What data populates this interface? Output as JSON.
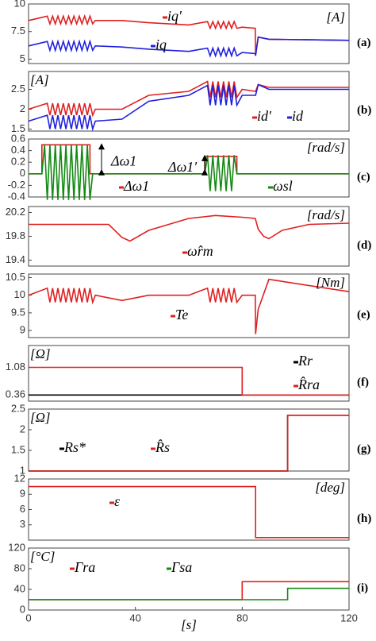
{
  "chart_data": [
    {
      "type": "line",
      "label": "(a)",
      "unit": "[A]",
      "xlim": [
        0,
        120
      ],
      "ylim": [
        4.6,
        10
      ],
      "yticks": [
        5,
        7.5,
        10
      ],
      "series": [
        {
          "name": "-iq′",
          "color": "#e02020",
          "x": [
            0,
            7,
            8,
            9,
            10,
            11,
            12,
            13,
            14,
            15,
            16,
            17,
            18,
            19,
            20,
            21,
            22,
            23,
            24,
            25,
            35,
            45,
            60,
            67,
            68,
            69,
            70,
            71,
            72,
            73,
            74,
            75,
            76,
            77,
            78,
            80,
            84.9,
            85,
            86,
            90,
            120
          ],
          "values": [
            8.5,
            8.9,
            8.2,
            8.9,
            8.2,
            8.9,
            8.2,
            8.9,
            8.2,
            8.9,
            8.2,
            8.9,
            8.2,
            8.9,
            8.2,
            8.9,
            8.2,
            8.9,
            8.2,
            8.5,
            8.5,
            8.3,
            8.1,
            8.4,
            7.8,
            8.4,
            7.8,
            8.4,
            7.8,
            8.4,
            7.8,
            8.4,
            7.8,
            8.4,
            7.8,
            7.9,
            7.8,
            5.4,
            7.0,
            6.8,
            6.7
          ]
        },
        {
          "name": "-iq",
          "color": "#2020e0",
          "x": [
            0,
            7,
            8,
            9,
            10,
            11,
            12,
            13,
            14,
            15,
            16,
            17,
            18,
            19,
            20,
            21,
            22,
            23,
            24,
            25,
            35,
            45,
            60,
            67,
            68,
            69,
            70,
            71,
            72,
            73,
            74,
            75,
            76,
            77,
            78,
            80,
            84.9,
            85,
            86,
            90,
            120
          ],
          "values": [
            6.2,
            6.6,
            5.8,
            6.6,
            5.8,
            6.6,
            5.8,
            6.6,
            5.8,
            6.6,
            5.8,
            6.6,
            5.8,
            6.6,
            5.8,
            6.6,
            5.8,
            6.6,
            5.8,
            6.2,
            6.1,
            5.9,
            5.7,
            6.0,
            5.3,
            6.0,
            5.3,
            6.0,
            5.3,
            6.0,
            5.3,
            6.0,
            5.3,
            6.0,
            5.3,
            5.6,
            5.5,
            5.3,
            7.0,
            6.8,
            6.7
          ]
        }
      ]
    },
    {
      "type": "line",
      "label": "(b)",
      "unit": "[A]",
      "xlim": [
        0,
        120
      ],
      "ylim": [
        1.45,
        2.95
      ],
      "yticks": [
        1.5,
        2,
        2.5
      ],
      "series": [
        {
          "name": "-id′",
          "color": "#e02020",
          "x": [
            0,
            7,
            8,
            9,
            10,
            11,
            12,
            13,
            14,
            15,
            16,
            17,
            18,
            19,
            20,
            21,
            22,
            23,
            24,
            25,
            35,
            45,
            60,
            67,
            68,
            69,
            70,
            71,
            72,
            73,
            74,
            75,
            76,
            77,
            78,
            80,
            84.9,
            85,
            86,
            90,
            120
          ],
          "values": [
            2.0,
            2.15,
            1.85,
            2.15,
            1.85,
            2.15,
            1.85,
            2.15,
            1.85,
            2.15,
            1.85,
            2.15,
            1.85,
            2.15,
            1.85,
            2.15,
            1.85,
            2.15,
            1.85,
            2.0,
            2.0,
            2.35,
            2.45,
            2.7,
            2.3,
            2.7,
            2.3,
            2.7,
            2.3,
            2.7,
            2.3,
            2.7,
            2.3,
            2.7,
            2.3,
            2.5,
            2.45,
            2.45,
            2.62,
            2.55,
            2.55
          ]
        },
        {
          "name": "-id",
          "color": "#2020e0",
          "x": [
            0,
            7,
            8,
            9,
            10,
            11,
            12,
            13,
            14,
            15,
            16,
            17,
            18,
            19,
            20,
            21,
            22,
            23,
            24,
            25,
            35,
            45,
            60,
            67,
            68,
            69,
            70,
            71,
            72,
            73,
            74,
            75,
            76,
            77,
            78,
            80,
            84.9,
            85,
            86,
            90,
            120
          ],
          "values": [
            1.7,
            1.85,
            1.5,
            1.85,
            1.5,
            1.85,
            1.5,
            1.85,
            1.5,
            1.85,
            1.5,
            1.85,
            1.5,
            1.85,
            1.5,
            1.85,
            1.5,
            1.85,
            1.5,
            1.7,
            1.75,
            2.2,
            2.35,
            2.6,
            2.1,
            2.6,
            2.1,
            2.6,
            2.1,
            2.6,
            2.1,
            2.6,
            2.1,
            2.6,
            2.1,
            2.35,
            2.35,
            2.35,
            2.62,
            2.5,
            2.5
          ]
        }
      ]
    },
    {
      "type": "line",
      "label": "(c)",
      "unit": "[rad/s]",
      "annotations": [
        "Δω1",
        "Δω1′"
      ],
      "xlim": [
        0,
        120
      ],
      "ylim": [
        -0.4,
        0.6
      ],
      "yticks": [
        -0.4,
        -0.2,
        0,
        0.2,
        0.4,
        0.6
      ],
      "series": [
        {
          "name": "-Δω1",
          "color": "#e02020",
          "x": [
            0,
            5,
            5,
            23,
            23,
            66,
            66,
            78,
            78,
            120
          ],
          "values": [
            0,
            0,
            0.5,
            0.5,
            0,
            0,
            0.3,
            0.3,
            0,
            0
          ]
        },
        {
          "name": "-ωsl",
          "color": "#138a13",
          "x": [
            0,
            5,
            6,
            7,
            8,
            9,
            10,
            11,
            12,
            13,
            14,
            15,
            16,
            17,
            18,
            19,
            20,
            21,
            22,
            23,
            24,
            66,
            67,
            68,
            69,
            70,
            71,
            72,
            73,
            74,
            75,
            76,
            77,
            78,
            120
          ],
          "values": [
            0,
            0,
            0.5,
            -0.45,
            0.5,
            -0.45,
            0.5,
            -0.45,
            0.5,
            -0.45,
            0.5,
            -0.45,
            0.5,
            -0.45,
            0.5,
            -0.45,
            0.5,
            -0.45,
            0.5,
            -0.45,
            0,
            0,
            0.32,
            -0.3,
            0.32,
            -0.3,
            0.32,
            -0.3,
            0.32,
            -0.3,
            0.32,
            -0.3,
            0.32,
            0,
            0
          ]
        }
      ]
    },
    {
      "type": "line",
      "label": "(d)",
      "unit": "[rad/s]",
      "xlim": [
        0,
        120
      ],
      "ylim": [
        19.3,
        20.3
      ],
      "yticks": [
        19.4,
        19.8,
        20.2
      ],
      "series": [
        {
          "name": "-ω̂rm",
          "color": "#e02020",
          "x": [
            0,
            7,
            24,
            30,
            35,
            38,
            45,
            60,
            70,
            80,
            84.9,
            86,
            88,
            90,
            95,
            105,
            120
          ],
          "values": [
            20.0,
            20.0,
            20.0,
            20.0,
            19.78,
            19.72,
            19.9,
            20.1,
            20.15,
            20.12,
            20.1,
            19.92,
            19.8,
            19.76,
            19.9,
            20.0,
            20.02
          ]
        }
      ]
    },
    {
      "type": "line",
      "label": "(e)",
      "unit": "[Nm]",
      "xlim": [
        0,
        120
      ],
      "ylim": [
        8.8,
        10.6
      ],
      "yticks": [
        9,
        9.5,
        10,
        10.5
      ],
      "series": [
        {
          "name": "-Te",
          "color": "#e02020",
          "x": [
            0,
            7,
            8,
            9,
            10,
            11,
            12,
            13,
            14,
            15,
            16,
            17,
            18,
            19,
            20,
            21,
            22,
            23,
            24,
            25,
            35,
            45,
            60,
            67,
            68,
            69,
            70,
            71,
            72,
            73,
            74,
            75,
            76,
            77,
            78,
            80,
            84.9,
            85,
            86,
            90,
            120
          ],
          "values": [
            10,
            10.2,
            9.8,
            10.2,
            9.8,
            10.2,
            9.8,
            10.2,
            9.8,
            10.2,
            9.8,
            10.2,
            9.8,
            10.2,
            9.8,
            10.2,
            9.8,
            10.2,
            9.8,
            10,
            9.85,
            10,
            10,
            10.2,
            9.8,
            10.2,
            9.8,
            10.2,
            9.8,
            10.2,
            9.8,
            10.2,
            9.8,
            10.2,
            9.8,
            10,
            10,
            8.9,
            9.6,
            10.45,
            10.1
          ]
        }
      ]
    },
    {
      "type": "line",
      "label": "(f)",
      "unit": "[Ω]",
      "xlim": [
        0,
        120
      ],
      "ylim": [
        0.2,
        1.65
      ],
      "yticks": [
        0.36,
        1.08
      ],
      "series": [
        {
          "name": "-Rr",
          "color": "#000000",
          "x": [
            0,
            120
          ],
          "values": [
            0.36,
            0.36
          ]
        },
        {
          "name": "-R̂ra",
          "color": "#e02020",
          "x": [
            0,
            80,
            80,
            120
          ],
          "values": [
            1.08,
            1.08,
            0.36,
            0.36
          ]
        }
      ]
    },
    {
      "type": "line",
      "label": "(g)",
      "unit": "[Ω]",
      "xlim": [
        0,
        120
      ],
      "ylim": [
        1,
        2.5
      ],
      "yticks": [
        1,
        1.5,
        2,
        2.5
      ],
      "series": [
        {
          "name": "-Rs*",
          "color": "#000000",
          "x": [
            0,
            97,
            97,
            120
          ],
          "values": [
            1,
            1,
            2.35,
            2.35
          ]
        },
        {
          "name": "-R̂s",
          "color": "#e02020",
          "x": [
            0,
            97,
            97,
            120
          ],
          "values": [
            1,
            1,
            2.35,
            2.35
          ]
        }
      ]
    },
    {
      "type": "line",
      "label": "(h)",
      "unit": "[deg]",
      "xlim": [
        0,
        120
      ],
      "ylim": [
        0,
        12
      ],
      "yticks": [
        3,
        6,
        9,
        12
      ],
      "series": [
        {
          "name": "-ε",
          "color": "#e02020",
          "x": [
            0,
            85,
            85,
            120
          ],
          "values": [
            10.5,
            10.5,
            0.5,
            0.5
          ]
        }
      ]
    },
    {
      "type": "line",
      "label": "(i)",
      "unit": "[°C]",
      "xlabel": "[s]",
      "xlim": [
        0,
        120
      ],
      "xticks": [
        0,
        40,
        80,
        120
      ],
      "ylim": [
        0,
        120
      ],
      "yticks": [
        0,
        40,
        80,
        120
      ],
      "series": [
        {
          "name": "-Γra",
          "color": "#e02020",
          "x": [
            0,
            80,
            80,
            120
          ],
          "values": [
            20,
            20,
            55,
            55
          ]
        },
        {
          "name": "-Γsa",
          "color": "#138a13",
          "x": [
            0,
            97,
            97,
            120
          ],
          "values": [
            20,
            20,
            42,
            42
          ]
        }
      ]
    }
  ]
}
